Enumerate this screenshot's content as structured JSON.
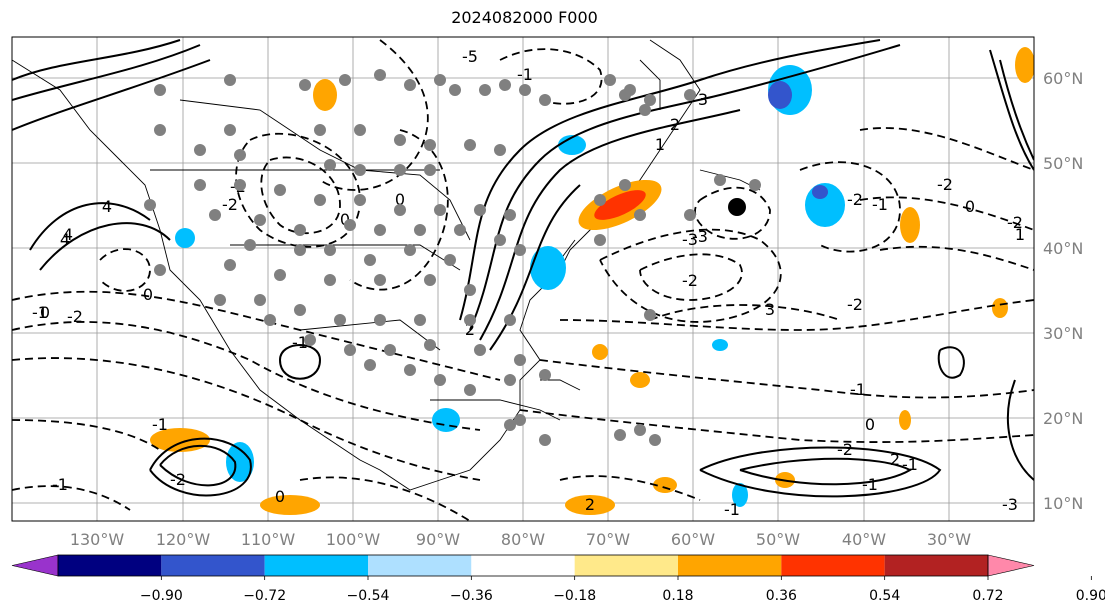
{
  "title": "2024082000 F000",
  "longitude_labels": [
    "130°W",
    "120°W",
    "110°W",
    "100°W",
    "90°W",
    "80°W",
    "70°W",
    "60°W",
    "50°W",
    "40°W",
    "30°W"
  ],
  "latitude_labels": [
    "60°N",
    "50°N",
    "40°N",
    "30°N",
    "20°N",
    "10°N"
  ],
  "colorbar": {
    "ticks": [
      "−0.90",
      "−0.72",
      "−0.54",
      "−0.36",
      "−0.18",
      "0.18",
      "0.36",
      "0.54",
      "0.72",
      "0.90"
    ],
    "colors": [
      "#9933cc",
      "#000080",
      "#3355cc",
      "#00bfff",
      "#aee0ff",
      "#ffffff",
      "#ffe98a",
      "#ffa500",
      "#ff3300",
      "#b22222",
      "#ff88aa"
    ]
  },
  "contour_labels": [
    "-5",
    "4",
    "-2",
    "2",
    "0",
    "-3",
    "-1",
    "-2",
    "0",
    "-2",
    "4",
    "3",
    "2",
    "1",
    "-3",
    "-2",
    "-1",
    "0",
    "-1",
    "0",
    "2",
    "3",
    "-1",
    "0",
    "-2",
    "-1",
    "-3",
    "-2",
    "0",
    "-2",
    "-1",
    "-2",
    "-2",
    "1",
    "2",
    "-1",
    "-1",
    "0",
    "-2",
    "-1",
    "-1",
    "4"
  ],
  "colors": {
    "grid": "#888888",
    "contour": "#000000",
    "dot_gray": "#808080",
    "dot_black": "#000000"
  }
}
